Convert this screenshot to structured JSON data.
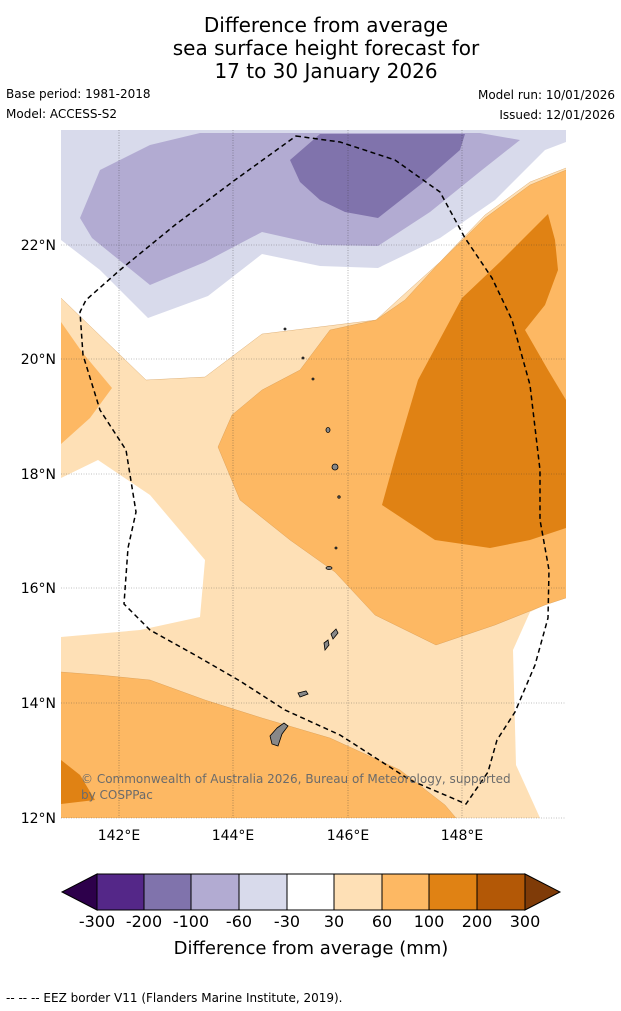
{
  "header": {
    "title_lines": [
      "Difference from average",
      "sea surface height forecast for",
      "17 to 30 January 2026"
    ],
    "base_period": "Base period: 1981-2018",
    "model": "Model: ACCESS-S2",
    "model_run": "Model run: 10/01/2026",
    "issued": "Issued: 12/01/2026"
  },
  "map": {
    "lat_labels": [
      "22°N",
      "20°N",
      "18°N",
      "16°N",
      "14°N",
      "12°N"
    ],
    "lon_labels": [
      "142°E",
      "144°E",
      "146°E",
      "148°E"
    ],
    "copyright_lines": [
      "© Commonwealth of Australia 2026, Bureau of Meteorology, supported",
      "by COSPPac"
    ]
  },
  "colorbar": {
    "ticks": [
      "-300",
      "-200",
      "-100",
      "-60",
      "-30",
      "30",
      "60",
      "100",
      "200",
      "300"
    ],
    "colors": [
      "#542788",
      "#8073ac",
      "#b2abd2",
      "#d8daeb",
      "#ffffff",
      "#fee0b6",
      "#fdb863",
      "#e08214",
      "#b35806"
    ],
    "low_extend_color": "#2d004b",
    "high_extend_color": "#7f3b08",
    "title": "Difference from average (mm)"
  },
  "footer": {
    "eez_note": "--  --  -- EEZ border V11 (Flanders Marine Institute, 2019)."
  }
}
